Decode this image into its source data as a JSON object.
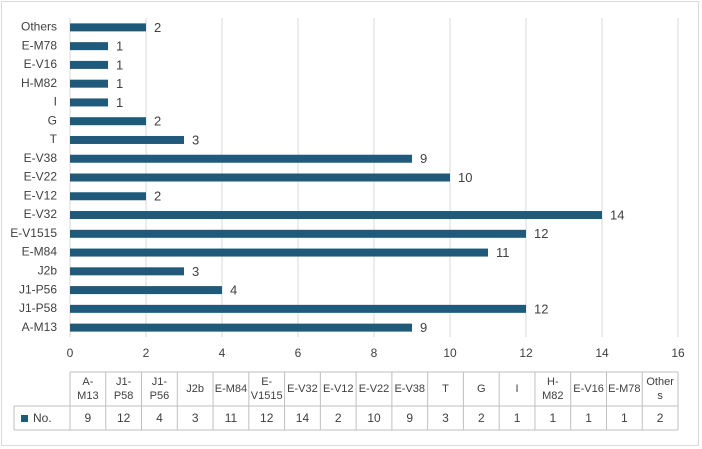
{
  "chart_data": {
    "type": "bar",
    "orientation": "horizontal",
    "categories": [
      "A-M13",
      "J1-P58",
      "J1-P56",
      "J2b",
      "E-M84",
      "E-V1515",
      "E-V32",
      "E-V12",
      "E-V22",
      "E-V38",
      "T",
      "G",
      "I",
      "H-M82",
      "E-V16",
      "E-M78",
      "Others"
    ],
    "table_categories": [
      "A-\nM13",
      "J1-\nP58",
      "J1-\nP56",
      "J2b",
      "E-M84",
      "E-\nV1515",
      "E-V32",
      "E-V12",
      "E-V22",
      "E-V38",
      "T",
      "G",
      "I",
      "H-\nM82",
      "E-V16",
      "E-M78",
      "Other\ns"
    ],
    "series": [
      {
        "name": "No.",
        "values": [
          9,
          12,
          4,
          3,
          11,
          12,
          14,
          2,
          10,
          9,
          3,
          2,
          1,
          1,
          1,
          1,
          2
        ]
      }
    ],
    "xlim": [
      0,
      16
    ],
    "xticks": [
      0,
      2,
      4,
      6,
      8,
      10,
      12,
      14,
      16
    ],
    "grid": true,
    "legend": "data-table",
    "title": "",
    "xlabel": "",
    "ylabel": "",
    "colors": {
      "bar": "#1f5a7a",
      "grid": "#d9d9d9",
      "text": "#404040"
    }
  }
}
